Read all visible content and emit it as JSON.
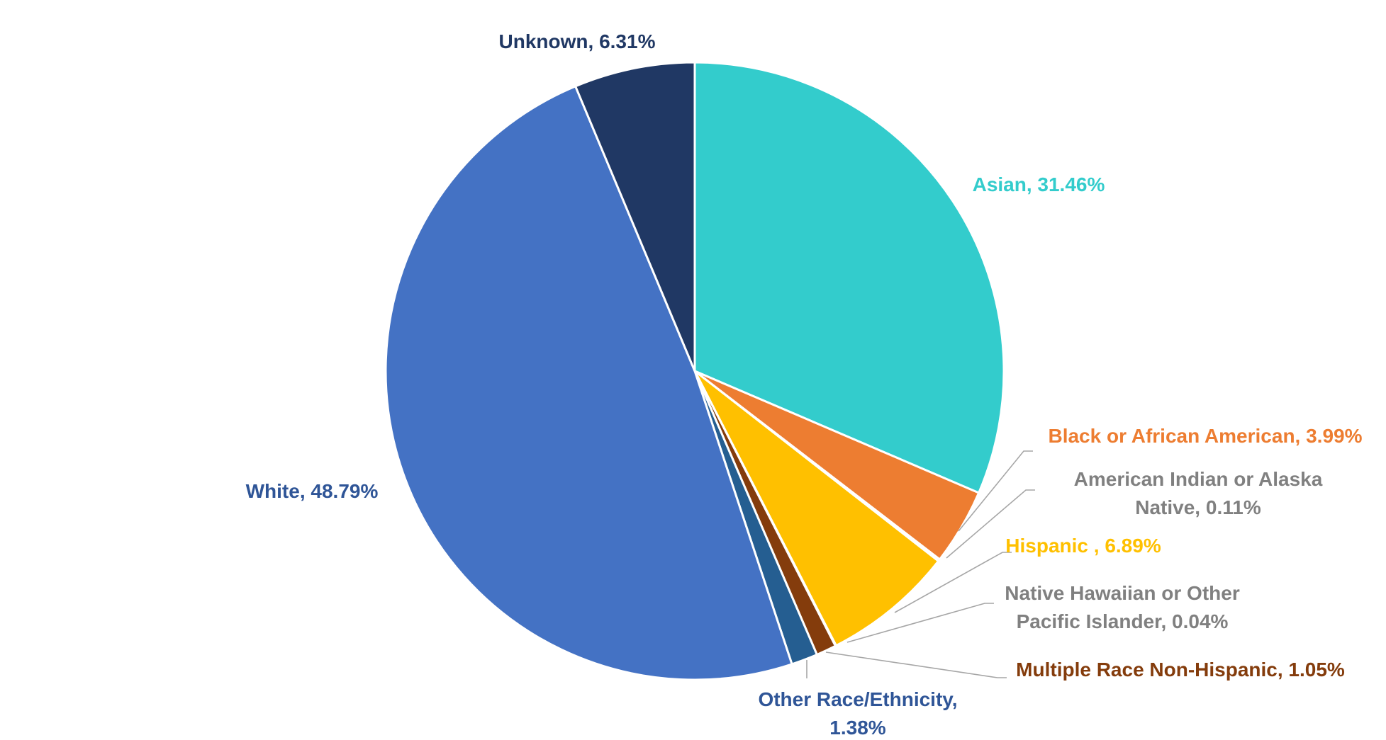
{
  "chart_data": {
    "type": "pie",
    "title": "",
    "start_angle_deg": 0,
    "direction": "clockwise",
    "slices": [
      {
        "label": "Asian, 31.46%",
        "lines": [
          "Asian, 31.46%"
        ],
        "value": 31.46,
        "color": "#33CCCC",
        "label_color": "#33CCCC"
      },
      {
        "label": "Black or African American, 3.99%",
        "lines": [
          "Black or African American, 3.99%"
        ],
        "value": 3.99,
        "color": "#ED7D31",
        "label_color": "#ED7D31"
      },
      {
        "label": "American Indian or Alaska Native, 0.11%",
        "lines": [
          "American Indian or Alaska",
          "Native, 0.11%"
        ],
        "value": 0.11,
        "color": "#A5A5A5",
        "label_color": "#808080"
      },
      {
        "label": "Hispanic , 6.89%",
        "lines": [
          "Hispanic , 6.89%"
        ],
        "value": 6.89,
        "color": "#FFC000",
        "label_color": "#FFC000"
      },
      {
        "label": "Native Hawaiian or Other Pacific Islander, 0.04%",
        "lines": [
          "Native Hawaiian or Other",
          "Pacific Islander, 0.04%"
        ],
        "value": 0.04,
        "color": "#A5A5A5",
        "label_color": "#808080"
      },
      {
        "label": "Multiple Race Non-Hispanic, 1.05%",
        "lines": [
          "Multiple Race Non-Hispanic, 1.05%"
        ],
        "value": 1.05,
        "color": "#843C0C",
        "label_color": "#843C0C"
      },
      {
        "label": "Other Race/Ethnicity, 1.38%",
        "lines": [
          "Other Race/Ethnicity,",
          "1.38%"
        ],
        "value": 1.38,
        "color": "#255E91",
        "label_color": "#2F5597"
      },
      {
        "label": "White, 48.79%",
        "lines": [
          "White, 48.79%"
        ],
        "value": 48.79,
        "color": "#4472C4",
        "label_color": "#2F5597"
      },
      {
        "label": "Unknown, 6.31%",
        "lines": [
          "Unknown, 6.31%"
        ],
        "value": 6.31,
        "color": "#203864",
        "label_color": "#203864"
      }
    ]
  }
}
